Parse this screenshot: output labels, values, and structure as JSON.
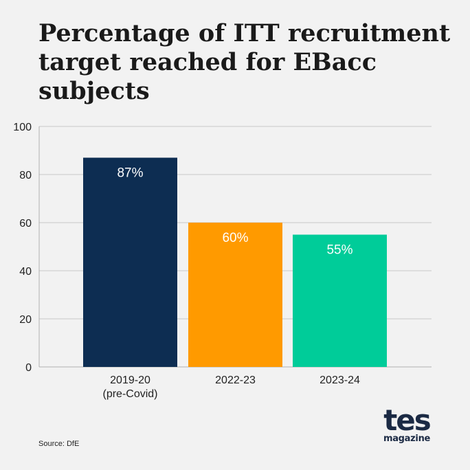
{
  "title": "Percentage of ITT recruitment target reached for EBacc subjects",
  "source": "Source: DfE",
  "logo": {
    "main": "tes",
    "sub": "magazine"
  },
  "chart_data": {
    "type": "bar",
    "categories": [
      [
        "2019-20",
        "(pre-Covid)"
      ],
      [
        "2022-23"
      ],
      [
        "2023-24"
      ]
    ],
    "values": [
      87,
      60,
      55
    ],
    "data_labels": [
      "87%",
      "60%",
      "55%"
    ],
    "colors": [
      "#0d2d52",
      "#ff9a00",
      "#00cc99"
    ],
    "ylim": [
      0,
      100
    ],
    "yticks": [
      0,
      20,
      40,
      60,
      80,
      100
    ],
    "grid": true,
    "xlabel": "",
    "ylabel": ""
  }
}
